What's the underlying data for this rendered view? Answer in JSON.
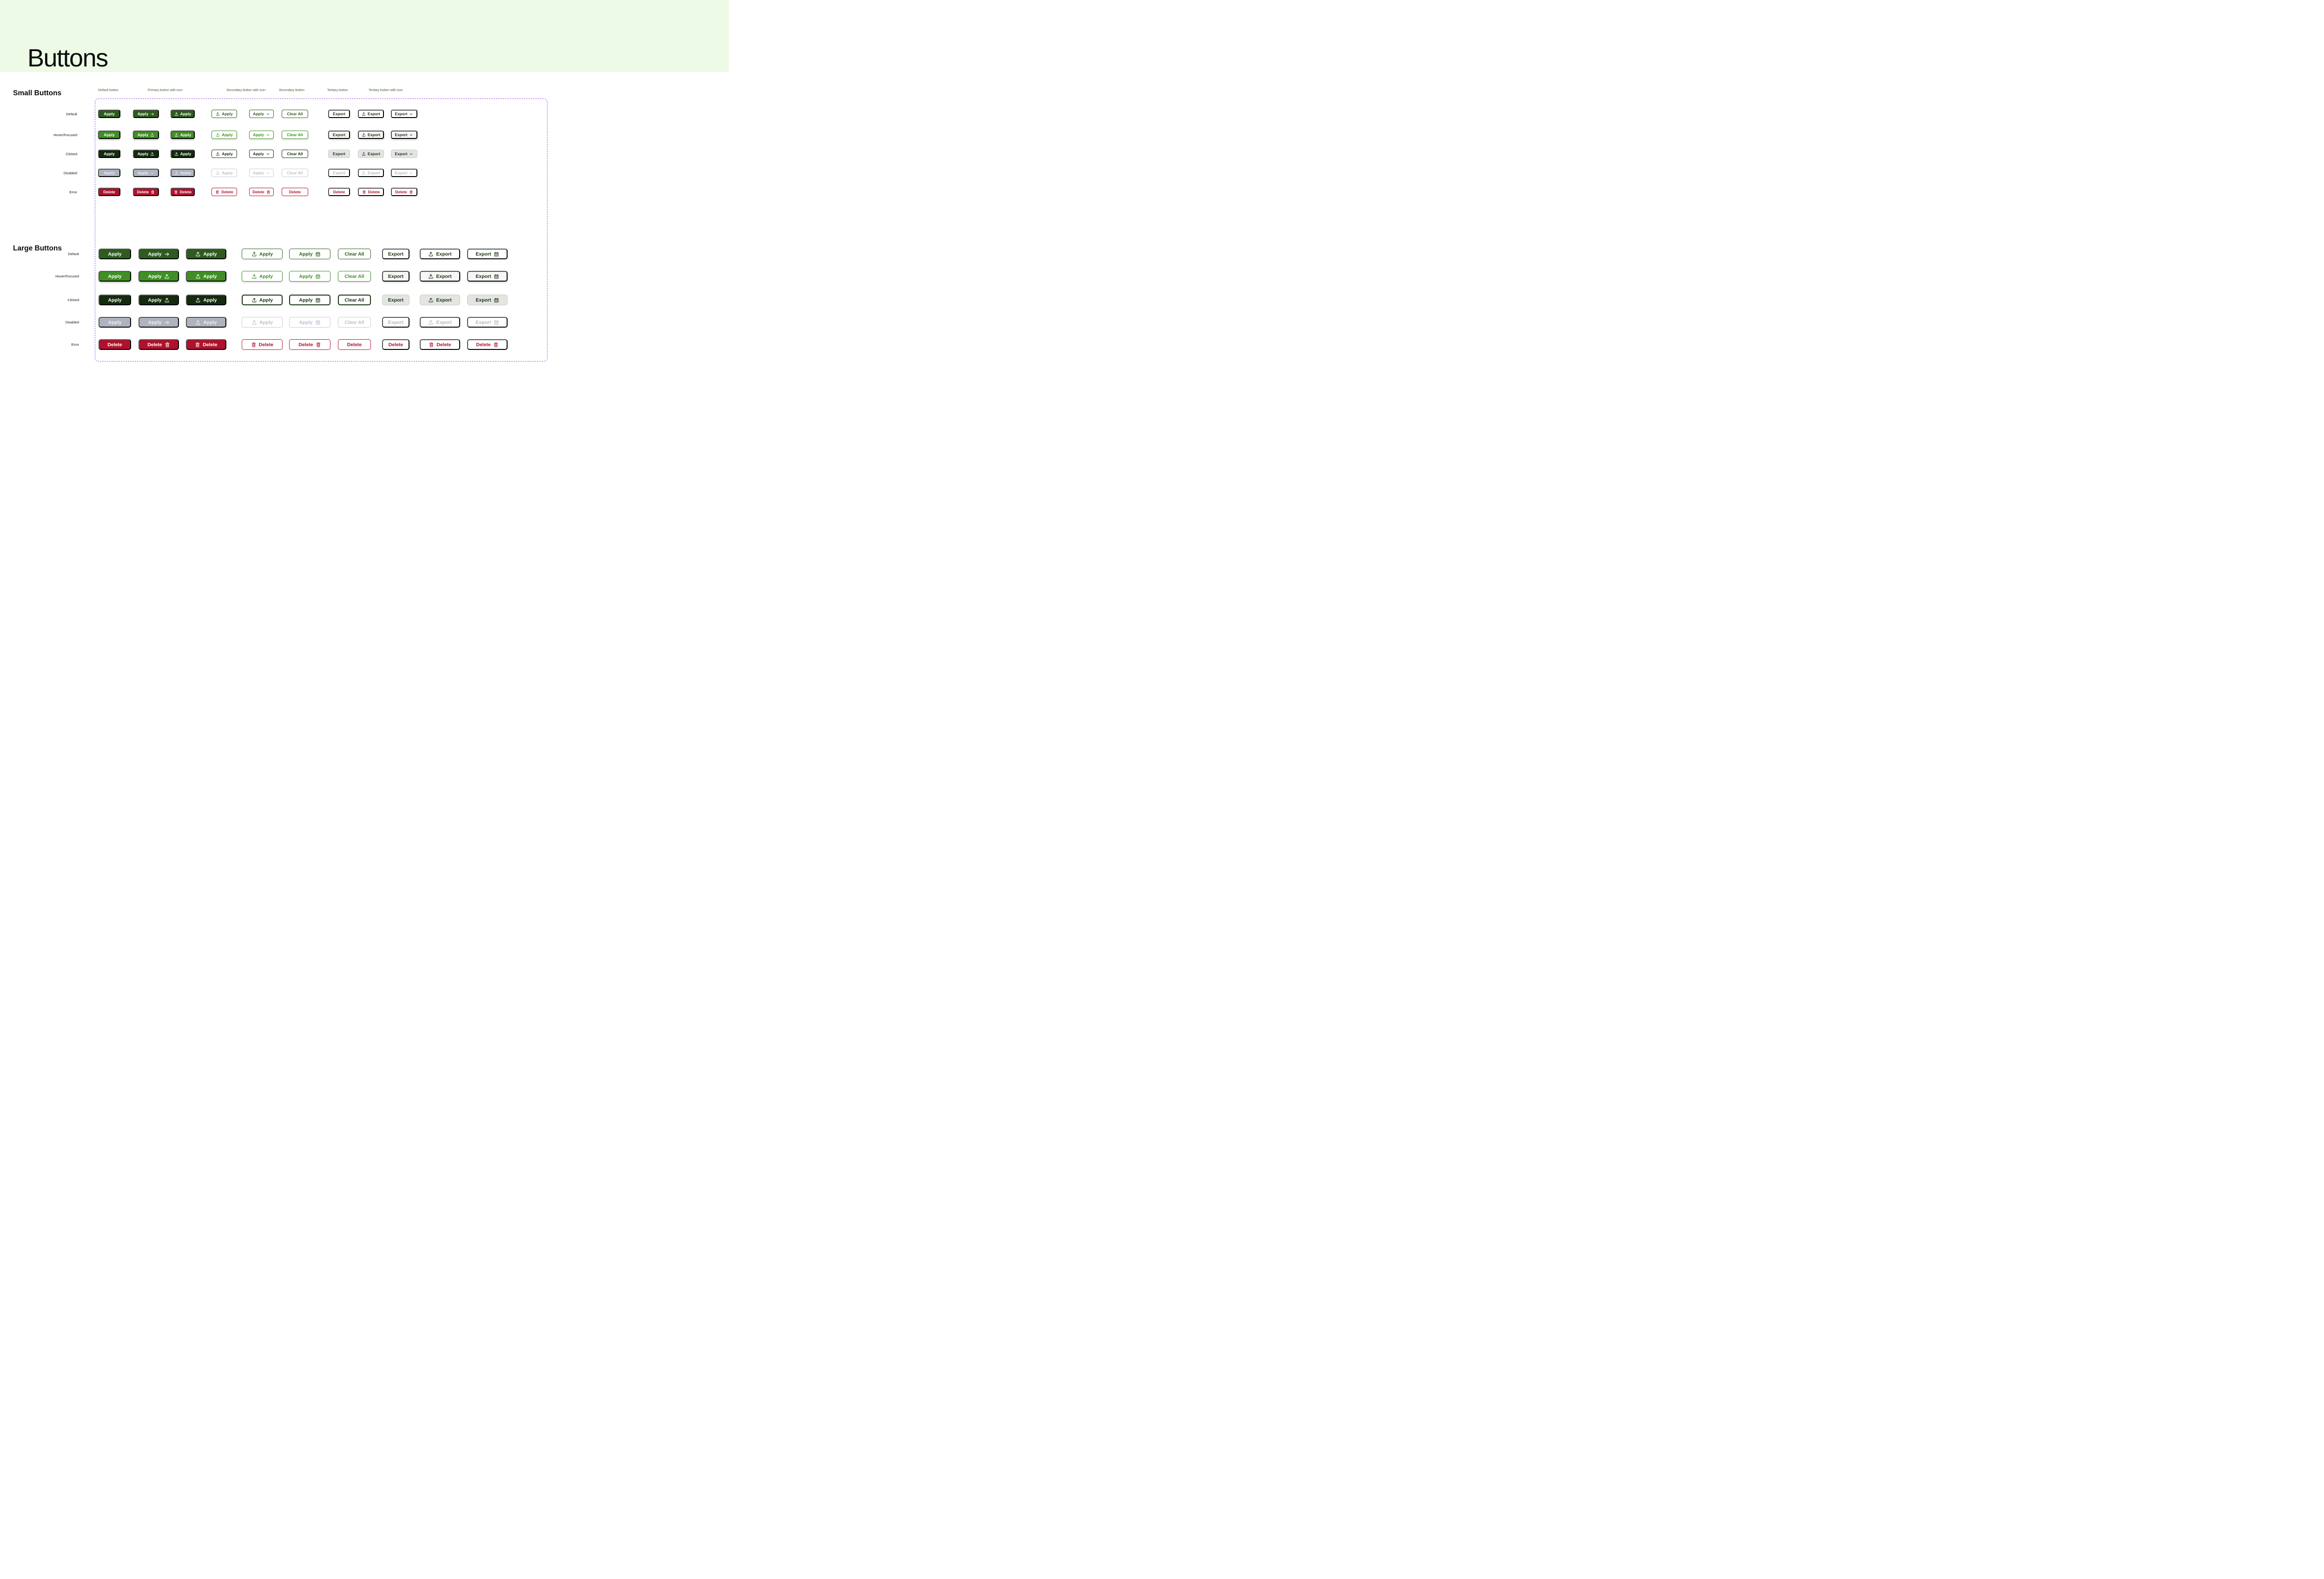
{
  "page": {
    "title": "Buttons"
  },
  "colors": {
    "header_bg": "#edfae6",
    "heading_text": "#0c0c0c",
    "row_label_text": "#161616",
    "column_header_text": "#3c5f2f",
    "dashed_border": "#9b53f2",
    "primary_default": "#2d5c1e",
    "primary_hover": "#3f8f24",
    "primary_clicked": "#142b0e",
    "disabled_bg": "#aeb3bf",
    "disabled_text": "#edeff4",
    "error": "#b0112c",
    "outline_default": "#2d5c1e",
    "outline_hover": "#3f8f24",
    "outline_clicked": "#16300f",
    "outline_disabled_border": "#c7cbd4",
    "outline_disabled_text": "#b9bfca",
    "tertiary_text": "#1d3414",
    "tertiary_hover_bg": "#f5f6f5",
    "tertiary_clicked_bg": "#e3e5e2",
    "tertiary_clicked_border": "#c9ccc7",
    "tertiary_disabled_text": "#b3b9c4"
  },
  "sections": [
    {
      "id": "small",
      "heading": "Small Buttons",
      "column_headers": [
        "Default button",
        "Primary button with icon",
        "Secondary button with icon",
        "Secondary button",
        "Tertiary button",
        "Tertiary button with icon"
      ],
      "rows": [
        {
          "label": "Default",
          "state": "default",
          "cells": [
            {
              "label": "Apply",
              "variant": "primary",
              "icon": null,
              "icon_side": null
            },
            {
              "label": "Apply",
              "variant": "primary",
              "icon": "arrow-right",
              "icon_side": "right"
            },
            {
              "label": "Apply",
              "variant": "primary",
              "icon": "upload",
              "icon_side": "left"
            },
            {
              "label": "Apply",
              "variant": "secondary",
              "icon": "upload",
              "icon_side": "left"
            },
            {
              "label": "Apply",
              "variant": "secondary",
              "icon": "chevron-down",
              "icon_side": "right"
            },
            {
              "label": "Clear All",
              "variant": "secondary",
              "icon": null,
              "icon_side": null
            },
            {
              "label": "Export",
              "variant": "tertiary",
              "icon": null,
              "icon_side": null
            },
            {
              "label": "Export",
              "variant": "tertiary",
              "icon": "upload",
              "icon_side": "left"
            },
            {
              "label": "Export",
              "variant": "tertiary",
              "icon": "chevron-down",
              "icon_side": "right"
            }
          ]
        },
        {
          "label": "Hover/Focused",
          "state": "hover",
          "cells": [
            {
              "label": "Apply",
              "variant": "primary",
              "icon": null,
              "icon_side": null
            },
            {
              "label": "Apply",
              "variant": "primary",
              "icon": "upload",
              "icon_side": "right"
            },
            {
              "label": "Apply",
              "variant": "primary",
              "icon": "upload",
              "icon_side": "left"
            },
            {
              "label": "Apply",
              "variant": "secondary",
              "icon": "upload",
              "icon_side": "left"
            },
            {
              "label": "Apply",
              "variant": "secondary",
              "icon": "chevron-down",
              "icon_side": "right"
            },
            {
              "label": "Clear All",
              "variant": "secondary",
              "icon": null,
              "icon_side": null
            },
            {
              "label": "Export",
              "variant": "tertiary",
              "icon": null,
              "icon_side": null
            },
            {
              "label": "Export",
              "variant": "tertiary",
              "icon": "upload",
              "icon_side": "left"
            },
            {
              "label": "Export",
              "variant": "tertiary",
              "icon": "chevron-down",
              "icon_side": "right"
            }
          ]
        },
        {
          "label": "Clicked",
          "state": "clicked",
          "cells": [
            {
              "label": "Apply",
              "variant": "primary",
              "icon": null,
              "icon_side": null
            },
            {
              "label": "Apply",
              "variant": "primary",
              "icon": "upload",
              "icon_side": "right"
            },
            {
              "label": "Apply",
              "variant": "primary",
              "icon": "upload",
              "icon_side": "left"
            },
            {
              "label": "Apply",
              "variant": "secondary",
              "icon": "upload",
              "icon_side": "left"
            },
            {
              "label": "Apply",
              "variant": "secondary",
              "icon": "chevron-down",
              "icon_side": "right"
            },
            {
              "label": "Clear All",
              "variant": "secondary",
              "icon": null,
              "icon_side": null
            },
            {
              "label": "Export",
              "variant": "tertiary",
              "icon": null,
              "icon_side": null
            },
            {
              "label": "Export",
              "variant": "tertiary",
              "icon": "upload",
              "icon_side": "left"
            },
            {
              "label": "Export",
              "variant": "tertiary",
              "icon": "chevron-down",
              "icon_side": "right"
            }
          ]
        },
        {
          "label": "Disabled",
          "state": "disabled",
          "cells": [
            {
              "label": "Apply",
              "variant": "primary",
              "icon": null,
              "icon_side": null
            },
            {
              "label": "Apply",
              "variant": "primary",
              "icon": "chevron-down",
              "icon_side": "right"
            },
            {
              "label": "Apply",
              "variant": "primary",
              "icon": "upload",
              "icon_side": "left"
            },
            {
              "label": "Apply",
              "variant": "secondary",
              "icon": "upload",
              "icon_side": "left"
            },
            {
              "label": "Apply",
              "variant": "secondary",
              "icon": "chevron-down",
              "icon_side": "right"
            },
            {
              "label": "Clear All",
              "variant": "secondary",
              "icon": null,
              "icon_side": null
            },
            {
              "label": "Export",
              "variant": "tertiary",
              "icon": null,
              "icon_side": null
            },
            {
              "label": "Export",
              "variant": "tertiary",
              "icon": "upload",
              "icon_side": "left"
            },
            {
              "label": "Export",
              "variant": "tertiary",
              "icon": "chevron-down",
              "icon_side": "right"
            }
          ]
        },
        {
          "label": "Error",
          "state": "error",
          "cells": [
            {
              "label": "Delete",
              "variant": "primary",
              "icon": null,
              "icon_side": null
            },
            {
              "label": "Delete",
              "variant": "primary",
              "icon": "trash",
              "icon_side": "right"
            },
            {
              "label": "Delete",
              "variant": "primary",
              "icon": "trash",
              "icon_side": "left"
            },
            {
              "label": "Delete",
              "variant": "secondary",
              "icon": "trash",
              "icon_side": "left"
            },
            {
              "label": "Delete",
              "variant": "secondary",
              "icon": "trash",
              "icon_side": "right"
            },
            {
              "label": "Delete",
              "variant": "secondary",
              "icon": null,
              "icon_side": null
            },
            {
              "label": "Delete",
              "variant": "tertiary",
              "icon": null,
              "icon_side": null
            },
            {
              "label": "Delete",
              "variant": "tertiary",
              "icon": "trash",
              "icon_side": "left"
            },
            {
              "label": "Delete",
              "variant": "tertiary",
              "icon": "trash",
              "icon_side": "right"
            }
          ]
        }
      ]
    },
    {
      "id": "large",
      "heading": "Large Buttons",
      "column_headers": [],
      "rows": [
        {
          "label": "Default",
          "state": "default",
          "cells": [
            {
              "label": "Apply",
              "variant": "primary",
              "icon": null,
              "icon_side": null
            },
            {
              "label": "Apply",
              "variant": "primary",
              "icon": "arrow-right",
              "icon_side": "right"
            },
            {
              "label": "Apply",
              "variant": "primary",
              "icon": "upload",
              "icon_side": "left"
            },
            {
              "label": "Apply",
              "variant": "secondary",
              "icon": "upload",
              "icon_side": "left"
            },
            {
              "label": "Apply",
              "variant": "secondary",
              "icon": "calendar",
              "icon_side": "right"
            },
            {
              "label": "Clear All",
              "variant": "secondary",
              "icon": null,
              "icon_side": null
            },
            {
              "label": "Export",
              "variant": "tertiary",
              "icon": null,
              "icon_side": null
            },
            {
              "label": "Export",
              "variant": "tertiary",
              "icon": "upload",
              "icon_side": "left"
            },
            {
              "label": "Export",
              "variant": "tertiary",
              "icon": "calendar",
              "icon_side": "right"
            }
          ]
        },
        {
          "label": "Hover/Focused",
          "state": "hover",
          "cells": [
            {
              "label": "Apply",
              "variant": "primary",
              "icon": null,
              "icon_side": null
            },
            {
              "label": "Apply",
              "variant": "primary",
              "icon": "upload",
              "icon_side": "right"
            },
            {
              "label": "Apply",
              "variant": "primary",
              "icon": "upload",
              "icon_side": "left"
            },
            {
              "label": "Apply",
              "variant": "secondary",
              "icon": "upload",
              "icon_side": "left"
            },
            {
              "label": "Apply",
              "variant": "secondary",
              "icon": "calendar",
              "icon_side": "right"
            },
            {
              "label": "Clear All",
              "variant": "secondary",
              "icon": null,
              "icon_side": null
            },
            {
              "label": "Export",
              "variant": "tertiary",
              "icon": null,
              "icon_side": null
            },
            {
              "label": "Export",
              "variant": "tertiary",
              "icon": "upload",
              "icon_side": "left"
            },
            {
              "label": "Export",
              "variant": "tertiary",
              "icon": "calendar",
              "icon_side": "right"
            }
          ]
        },
        {
          "label": "Clicked",
          "state": "clicked",
          "cells": [
            {
              "label": "Apply",
              "variant": "primary",
              "icon": null,
              "icon_side": null
            },
            {
              "label": "Apply",
              "variant": "primary",
              "icon": "upload",
              "icon_side": "right"
            },
            {
              "label": "Apply",
              "variant": "primary",
              "icon": "upload",
              "icon_side": "left"
            },
            {
              "label": "Apply",
              "variant": "secondary",
              "icon": "upload",
              "icon_side": "left"
            },
            {
              "label": "Apply",
              "variant": "secondary",
              "icon": "calendar",
              "icon_side": "right"
            },
            {
              "label": "Clear All",
              "variant": "secondary",
              "icon": null,
              "icon_side": null
            },
            {
              "label": "Export",
              "variant": "tertiary",
              "icon": null,
              "icon_side": null
            },
            {
              "label": "Export",
              "variant": "tertiary",
              "icon": "upload",
              "icon_side": "left"
            },
            {
              "label": "Export",
              "variant": "tertiary",
              "icon": "calendar",
              "icon_side": "right"
            }
          ]
        },
        {
          "label": "Disabled",
          "state": "disabled",
          "cells": [
            {
              "label": "Apply",
              "variant": "primary",
              "icon": null,
              "icon_side": null
            },
            {
              "label": "Apply",
              "variant": "primary",
              "icon": "arrow-right",
              "icon_side": "right"
            },
            {
              "label": "Apply",
              "variant": "primary",
              "icon": "upload",
              "icon_side": "left"
            },
            {
              "label": "Apply",
              "variant": "secondary",
              "icon": "upload",
              "icon_side": "left"
            },
            {
              "label": "Apply",
              "variant": "secondary",
              "icon": "calendar",
              "icon_side": "right"
            },
            {
              "label": "Clear All",
              "variant": "secondary",
              "icon": null,
              "icon_side": null
            },
            {
              "label": "Export",
              "variant": "tertiary",
              "icon": null,
              "icon_side": null
            },
            {
              "label": "Export",
              "variant": "tertiary",
              "icon": "upload",
              "icon_side": "left"
            },
            {
              "label": "Export",
              "variant": "tertiary",
              "icon": "calendar",
              "icon_side": "right"
            }
          ]
        },
        {
          "label": "Error",
          "state": "error",
          "cells": [
            {
              "label": "Delete",
              "variant": "primary",
              "icon": null,
              "icon_side": null
            },
            {
              "label": "Delete",
              "variant": "primary",
              "icon": "trash",
              "icon_side": "right"
            },
            {
              "label": "Delete",
              "variant": "primary",
              "icon": "trash",
              "icon_side": "left"
            },
            {
              "label": "Delete",
              "variant": "secondary",
              "icon": "trash",
              "icon_side": "left"
            },
            {
              "label": "Delete",
              "variant": "secondary",
              "icon": "trash",
              "icon_side": "right"
            },
            {
              "label": "Delete",
              "variant": "secondary",
              "icon": null,
              "icon_side": null
            },
            {
              "label": "Delete",
              "variant": "tertiary",
              "icon": null,
              "icon_side": null
            },
            {
              "label": "Delete",
              "variant": "tertiary",
              "icon": "trash",
              "icon_side": "left"
            },
            {
              "label": "Delete",
              "variant": "tertiary",
              "icon": "trash",
              "icon_side": "right"
            }
          ]
        }
      ]
    }
  ]
}
